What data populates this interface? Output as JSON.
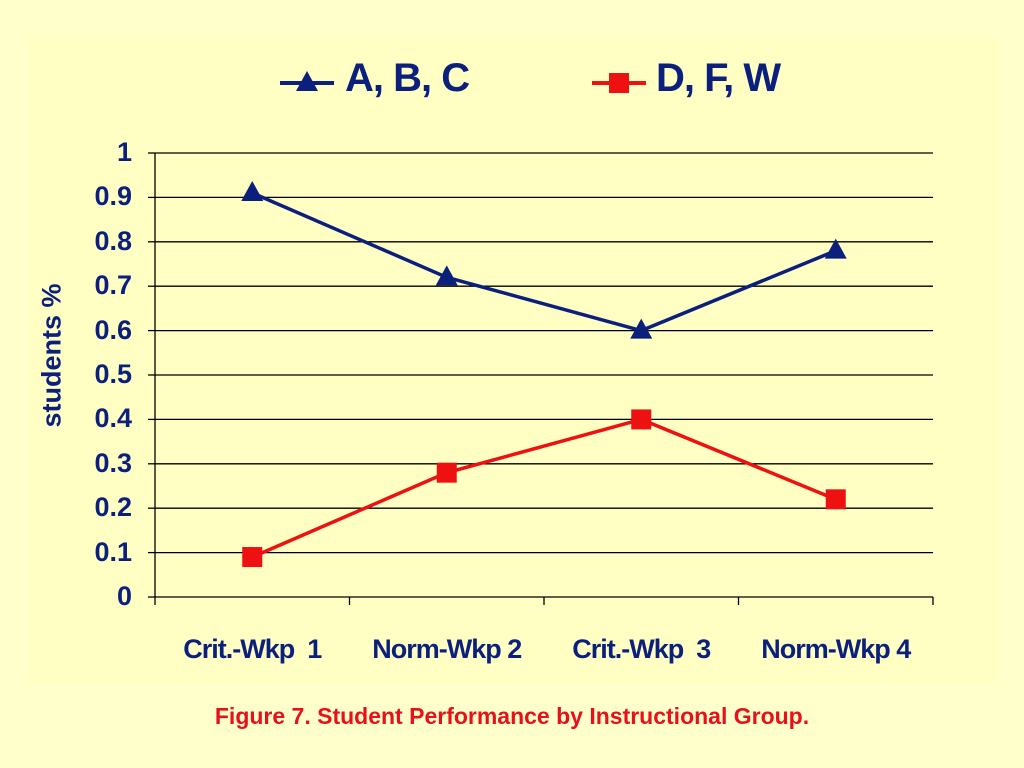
{
  "chart_data": {
    "type": "line",
    "categories": [
      "Crit.-Wkp  1",
      "Norm-Wkp 2",
      "Crit.-Wkp  3",
      "Norm-Wkp 4"
    ],
    "series": [
      {
        "name": "A, B, C",
        "values": [
          0.91,
          0.72,
          0.6,
          0.78
        ],
        "color": "#0B1F7C",
        "marker": "triangle"
      },
      {
        "name": "D, F, W",
        "values": [
          0.09,
          0.28,
          0.4,
          0.22
        ],
        "color": "#EE1111",
        "marker": "square"
      }
    ],
    "ylabel": "students %",
    "xlabel": "",
    "ylim": [
      0,
      1
    ],
    "yticks": [
      "0",
      "0.1",
      "0.2",
      "0.3",
      "0.4",
      "0.5",
      "0.6",
      "0.7",
      "0.8",
      "0.9",
      "1"
    ],
    "grid": true,
    "legend_position": "top"
  },
  "caption": "Figure 7. Student Performance by Instructional Group."
}
